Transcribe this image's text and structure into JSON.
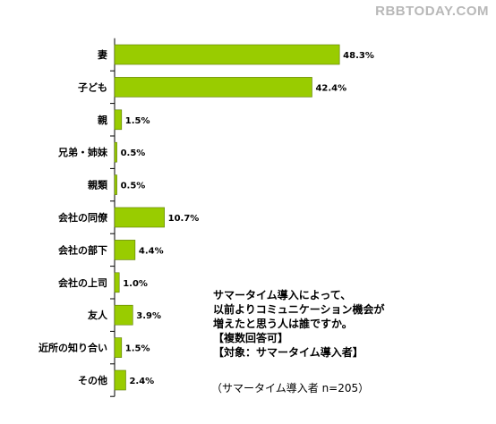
{
  "watermark": "RBBTODAY.COM",
  "chart_data": {
    "type": "bar",
    "orientation": "horizontal",
    "categories": [
      "妻",
      "子ども",
      "親",
      "兄弟・姉妹",
      "親類",
      "会社の同僚",
      "会社の部下",
      "会社の上司",
      "友人",
      "近所の知り合い",
      "その他"
    ],
    "values": [
      48.3,
      42.4,
      1.5,
      0.5,
      0.5,
      10.7,
      4.4,
      1.0,
      3.9,
      1.5,
      2.4
    ],
    "value_labels": [
      "48.3%",
      "42.4%",
      "1.5%",
      "0.5%",
      "0.5%",
      "10.7%",
      "4.4%",
      "1.0%",
      "3.9%",
      "1.5%",
      "2.4%"
    ],
    "bar_color": "#99cc00",
    "bar_border_color": "#5a7a00"
  },
  "note": {
    "lines": [
      "サマータイム導入によって、",
      "以前よりコミュニケーション機会が",
      "増えたと思う人は誰ですか。",
      "【複数回答可】",
      "【対象：サマータイム導入者】"
    ],
    "sample": "（サマータイム導入者 n=205）"
  }
}
